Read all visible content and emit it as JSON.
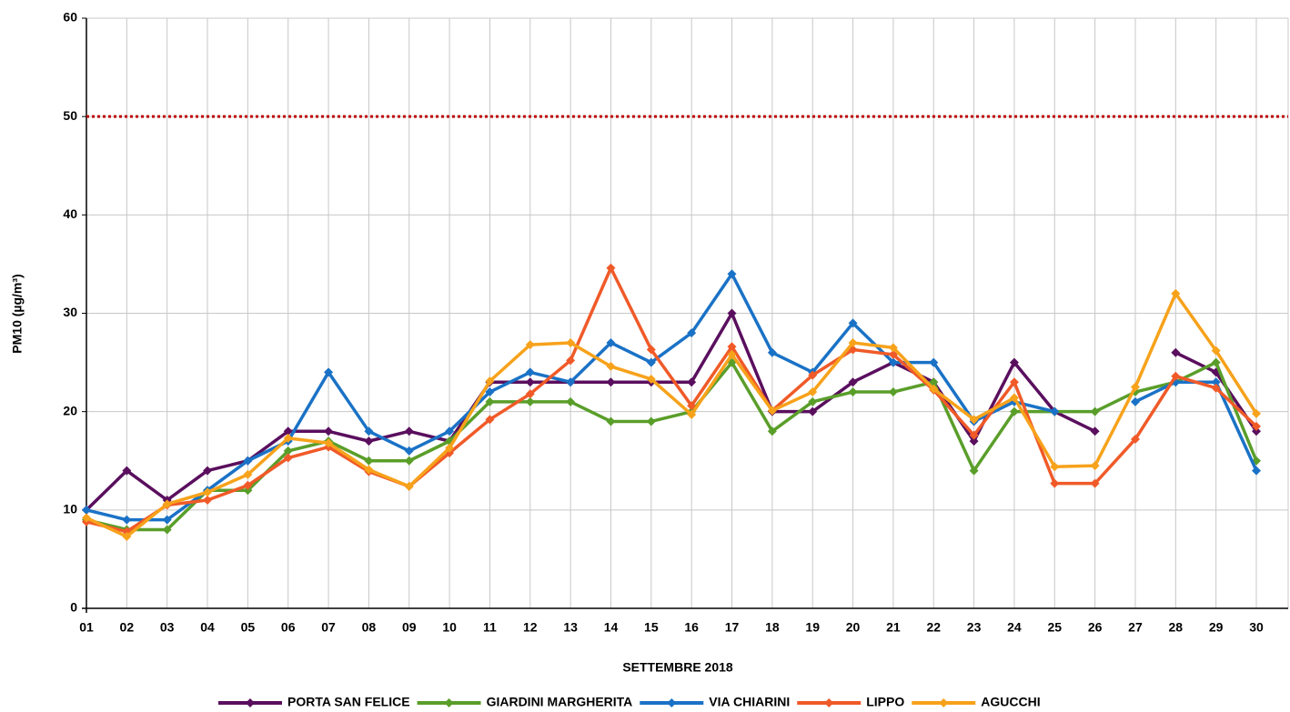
{
  "chart_data": {
    "type": "line",
    "y_label": "PM10 (µg/m³)",
    "x_label": "SETTEMBRE 2018",
    "categories": [
      "01",
      "02",
      "03",
      "04",
      "05",
      "06",
      "07",
      "08",
      "09",
      "10",
      "11",
      "12",
      "13",
      "14",
      "15",
      "16",
      "17",
      "18",
      "19",
      "20",
      "21",
      "22",
      "23",
      "24",
      "25",
      "26",
      "27",
      "28",
      "29",
      "30"
    ],
    "ylim": [
      0,
      60
    ],
    "yticks": [
      0,
      10,
      20,
      30,
      40,
      50,
      60
    ],
    "grid": true,
    "legend": "bottom",
    "reference_line": {
      "value": 50,
      "color": "#c00000"
    },
    "series": [
      {
        "name": "PORTA SAN FELICE",
        "color": "#5a0f5e",
        "values": [
          10,
          14,
          11,
          14,
          15,
          18,
          18,
          17,
          18,
          17,
          23,
          23,
          23,
          23,
          23,
          23,
          30,
          20,
          20,
          23,
          25,
          23,
          17,
          25,
          20,
          18,
          null,
          26,
          24,
          18
        ]
      },
      {
        "name": "GIARDINI MARGHERITA",
        "color": "#5a9e2a",
        "values": [
          9,
          8,
          8,
          12,
          12,
          16,
          17,
          15,
          15,
          17,
          21,
          21,
          21,
          19,
          19,
          20,
          25,
          18,
          21,
          22,
          22,
          23,
          14,
          20,
          20,
          20,
          22,
          23,
          25,
          15
        ]
      },
      {
        "name": "VIA CHIARINI",
        "color": "#1a72c6",
        "values": [
          10,
          9,
          9,
          12,
          15,
          17,
          24,
          18,
          16,
          18,
          22,
          24,
          23,
          27,
          25,
          28,
          34,
          26,
          24,
          29,
          25,
          25,
          19,
          21,
          20,
          null,
          21,
          23,
          23,
          14
        ]
      },
      {
        "name": "LIPPO",
        "color": "#f05a28",
        "values": [
          8.8,
          7.8,
          10.5,
          11,
          12.5,
          15.3,
          16.4,
          13.9,
          12.4,
          15.8,
          19.2,
          21.8,
          25.2,
          34.6,
          26.3,
          20.6,
          26.6,
          20.1,
          23.7,
          26.3,
          25.8,
          22.2,
          17.6,
          23,
          12.7,
          12.7,
          17.2,
          23.6,
          22.4,
          18.5
        ]
      },
      {
        "name": "AGUCCHI",
        "color": "#f7a21b",
        "values": [
          9.2,
          7.3,
          10.6,
          11.8,
          13.6,
          17.3,
          16.8,
          14.1,
          12.4,
          16.3,
          23.1,
          26.8,
          27,
          24.6,
          23.3,
          19.7,
          25.8,
          20.1,
          22,
          27,
          26.5,
          22.3,
          19.2,
          21.4,
          14.4,
          14.5,
          22.5,
          32,
          26.2,
          19.8
        ]
      }
    ]
  }
}
